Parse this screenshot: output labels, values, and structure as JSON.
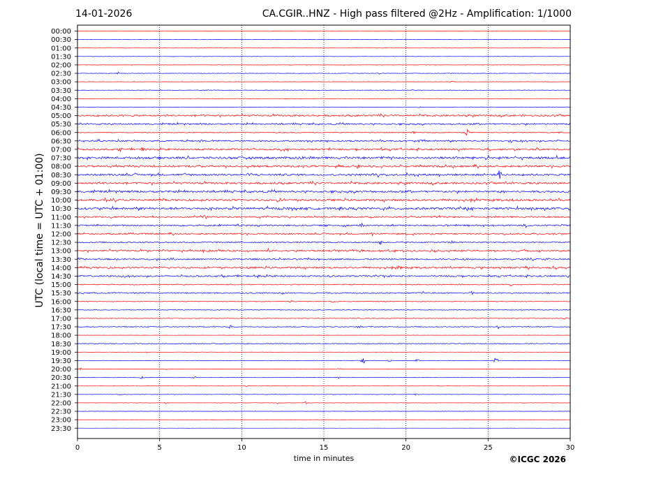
{
  "header": {
    "date": "14-01-2026",
    "title": "CA.CGIR..HNZ - High pass filtered @2Hz - Amplification: 1/1000"
  },
  "footer": {
    "copyright": "©ICGC 2026"
  },
  "colors": {
    "trace_a": "#ff0000",
    "trace_b": "#0000ff",
    "grid": "#000080",
    "axes": "#000000"
  },
  "chart_data": {
    "type": "line",
    "subtype": "helicorder",
    "xlabel": "time in minutes",
    "ylabel": "UTC (local time = UTC + 01:00)",
    "xlim": [
      0,
      30
    ],
    "x_ticks": [
      0,
      5,
      10,
      15,
      20,
      25,
      30
    ],
    "grid": "vertical dotted at 5, 10, 15, 20, 25",
    "trace_color_order": [
      "red",
      "blue"
    ],
    "rows": [
      {
        "label": "00:00",
        "noise": 0.04,
        "events": []
      },
      {
        "label": "00:30",
        "noise": 0.03,
        "events": []
      },
      {
        "label": "01:00",
        "noise": 0.03,
        "events": []
      },
      {
        "label": "01:30",
        "noise": 0.03,
        "events": []
      },
      {
        "label": "02:00",
        "noise": 0.03,
        "events": []
      },
      {
        "label": "02:30",
        "noise": 0.04,
        "events": [
          [
            2.5,
            0.2
          ],
          [
            18.4,
            0.15
          ],
          [
            22.8,
            0.15
          ]
        ]
      },
      {
        "label": "03:00",
        "noise": 0.03,
        "events": [
          [
            22.8,
            0.15
          ]
        ]
      },
      {
        "label": "03:30",
        "noise": 0.04,
        "events": [
          [
            5.0,
            0.25
          ],
          [
            7.9,
            0.2
          ],
          [
            20.4,
            0.15
          ]
        ]
      },
      {
        "label": "04:00",
        "noise": 0.03,
        "events": [
          [
            10.3,
            0.15
          ]
        ]
      },
      {
        "label": "04:30",
        "noise": 0.04,
        "events": [
          [
            20.8,
            0.15
          ]
        ]
      },
      {
        "label": "05:00",
        "noise": 0.14,
        "events": []
      },
      {
        "label": "05:30",
        "noise": 0.12,
        "events": []
      },
      {
        "label": "06:00",
        "noise": 0.08,
        "events": [
          [
            23.7,
            0.9
          ],
          [
            20.5,
            0.2
          ],
          [
            29.4,
            0.2
          ]
        ]
      },
      {
        "label": "06:30",
        "noise": 0.12,
        "events": [
          [
            20.9,
            0.4
          ],
          [
            26.4,
            0.5
          ],
          [
            29.3,
            0.3
          ]
        ]
      },
      {
        "label": "07:00",
        "noise": 0.14,
        "events": [
          [
            2.6,
            0.35
          ],
          [
            4.0,
            0.4
          ],
          [
            15.3,
            0.3
          ],
          [
            18.5,
            0.25
          ]
        ]
      },
      {
        "label": "07:30",
        "noise": 0.18,
        "events": [
          [
            13.5,
            0.3
          ],
          [
            18.0,
            0.3
          ],
          [
            21.5,
            0.3
          ]
        ]
      },
      {
        "label": "08:00",
        "noise": 0.16,
        "events": [
          [
            17.1,
            0.5
          ],
          [
            23.1,
            0.3
          ]
        ]
      },
      {
        "label": "08:30",
        "noise": 0.16,
        "events": [
          [
            18.3,
            0.35
          ],
          [
            25.7,
            0.9
          ]
        ]
      },
      {
        "label": "09:00",
        "noise": 0.16,
        "events": []
      },
      {
        "label": "09:30",
        "noise": 0.16,
        "events": []
      },
      {
        "label": "10:00",
        "noise": 0.16,
        "events": [
          [
            1.7,
            0.5
          ],
          [
            12.2,
            0.4
          ],
          [
            26.4,
            0.5
          ]
        ]
      },
      {
        "label": "10:30",
        "noise": 0.18,
        "events": [
          [
            8.0,
            0.4
          ],
          [
            16.0,
            0.35
          ],
          [
            23.7,
            0.35
          ],
          [
            29.8,
            0.3
          ]
        ]
      },
      {
        "label": "11:00",
        "noise": 0.12,
        "events": [
          [
            7.7,
            0.4
          ],
          [
            23.0,
            0.25
          ]
        ]
      },
      {
        "label": "11:30",
        "noise": 0.12,
        "events": [
          [
            17.3,
            0.35
          ],
          [
            24.2,
            0.4
          ],
          [
            27.3,
            0.4
          ]
        ]
      },
      {
        "label": "12:00",
        "noise": 0.12,
        "events": [
          [
            18.0,
            0.3
          ],
          [
            20.0,
            0.25
          ]
        ]
      },
      {
        "label": "12:30",
        "noise": 0.1,
        "events": [
          [
            18.4,
            0.8
          ],
          [
            22.8,
            0.3
          ]
        ]
      },
      {
        "label": "13:00",
        "noise": 0.14,
        "events": [
          [
            4.2,
            0.45
          ],
          [
            11.6,
            0.35
          ],
          [
            15.8,
            0.3
          ],
          [
            19.0,
            0.3
          ]
        ]
      },
      {
        "label": "13:30",
        "noise": 0.12,
        "events": [
          [
            23.7,
            0.4
          ],
          [
            28.6,
            0.35
          ]
        ]
      },
      {
        "label": "14:00",
        "noise": 0.14,
        "events": [
          [
            10.4,
            0.4
          ],
          [
            19.6,
            0.55
          ],
          [
            27.5,
            0.55
          ]
        ]
      },
      {
        "label": "14:30",
        "noise": 0.12,
        "events": [
          [
            2.8,
            0.5
          ],
          [
            15.3,
            0.4
          ],
          [
            11.0,
            0.3
          ]
        ]
      },
      {
        "label": "15:00",
        "noise": 0.08,
        "events": [
          [
            26.4,
            0.3
          ]
        ]
      },
      {
        "label": "15:30",
        "noise": 0.1,
        "events": [
          [
            0.3,
            0.3
          ],
          [
            12.5,
            0.35
          ],
          [
            21.0,
            0.3
          ],
          [
            24.0,
            0.35
          ]
        ]
      },
      {
        "label": "16:00",
        "noise": 0.05,
        "events": [
          [
            13.0,
            0.35
          ],
          [
            15.6,
            0.35
          ]
        ]
      },
      {
        "label": "16:30",
        "noise": 0.06,
        "events": []
      },
      {
        "label": "17:00",
        "noise": 0.05,
        "events": [
          [
            29.7,
            0.3
          ]
        ]
      },
      {
        "label": "17:30",
        "noise": 0.07,
        "events": [
          [
            9.3,
            0.45
          ],
          [
            17.1,
            0.35
          ],
          [
            25.6,
            0.35
          ]
        ]
      },
      {
        "label": "18:00",
        "noise": 0.02,
        "events": []
      },
      {
        "label": "18:30",
        "noise": 0.07,
        "events": []
      },
      {
        "label": "19:00",
        "noise": 0.03,
        "events": [
          [
            4.2,
            0.15
          ]
        ]
      },
      {
        "label": "19:30",
        "noise": 0.04,
        "events": [
          [
            17.4,
            0.7
          ],
          [
            19.0,
            0.3
          ],
          [
            20.7,
            0.35
          ],
          [
            25.5,
            0.8
          ]
        ]
      },
      {
        "label": "20:00",
        "noise": 0.03,
        "events": [
          [
            0.2,
            0.2
          ],
          [
            5.4,
            0.15
          ],
          [
            15.9,
            0.15
          ]
        ]
      },
      {
        "label": "20:30",
        "noise": 0.04,
        "events": [
          [
            3.9,
            0.25
          ],
          [
            7.1,
            0.2
          ],
          [
            15.9,
            0.15
          ]
        ]
      },
      {
        "label": "21:00",
        "noise": 0.03,
        "events": [
          [
            10.3,
            0.15
          ]
        ]
      },
      {
        "label": "21:30",
        "noise": 0.03,
        "events": [
          [
            2.6,
            0.15
          ],
          [
            20.6,
            0.15
          ]
        ]
      },
      {
        "label": "22:00",
        "noise": 0.03,
        "events": [
          [
            5.4,
            0.2
          ],
          [
            12.2,
            0.25
          ],
          [
            13.9,
            0.25
          ]
        ]
      },
      {
        "label": "22:30",
        "noise": 0.02,
        "events": []
      },
      {
        "label": "23:00",
        "noise": 0.01,
        "events": []
      },
      {
        "label": "23:30",
        "noise": 0.01,
        "events": []
      }
    ]
  }
}
